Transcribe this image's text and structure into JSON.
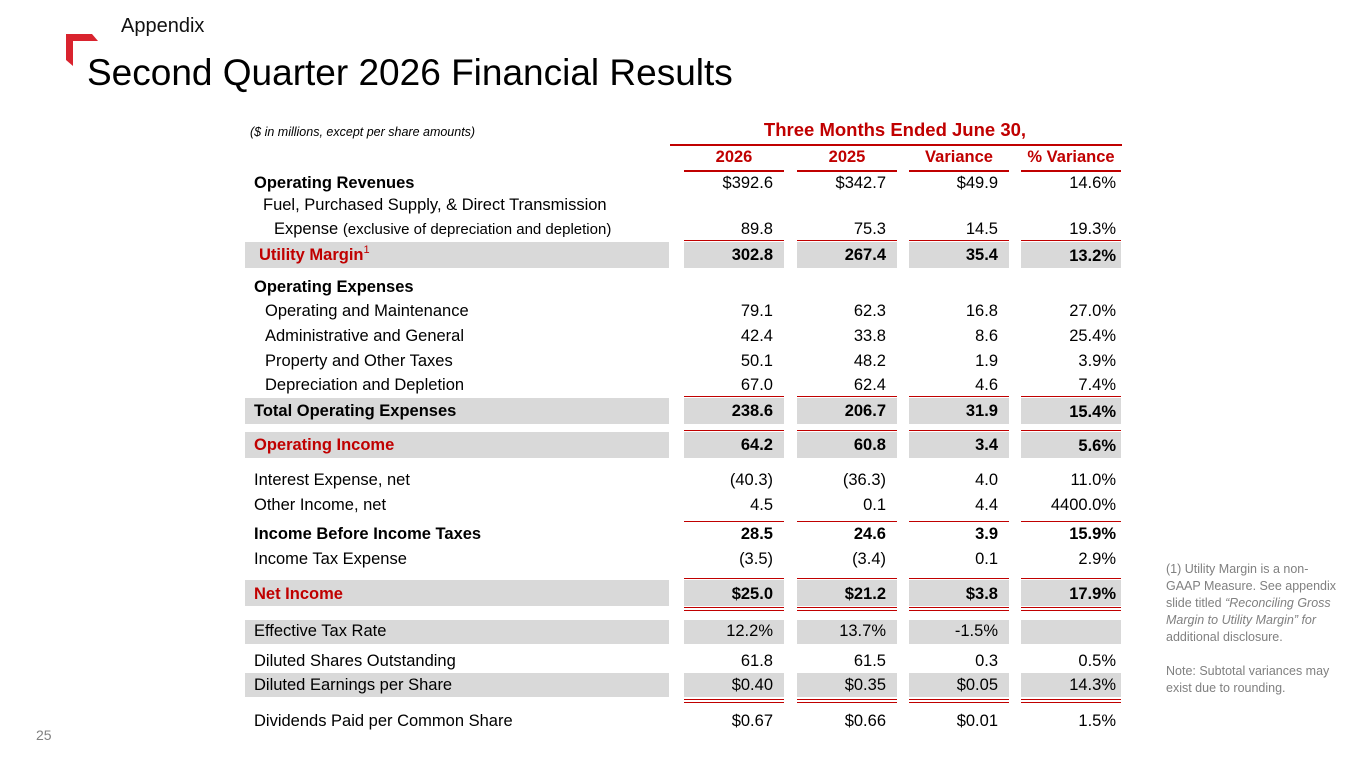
{
  "header": {
    "section": "Appendix",
    "title": "Second Quarter 2026 Financial Results"
  },
  "table": {
    "units_note": "($ in millions, except per share amounts)",
    "period_header": "Three Months Ended June 30,",
    "columns": [
      "2026",
      "2025",
      "Variance",
      "% Variance"
    ],
    "rows": [
      {
        "label": "Operating Revenues",
        "values": [
          "$392.6",
          "$342.7",
          "$49.9",
          "14.6%"
        ],
        "bold": true
      },
      {
        "label": "Fuel, Purchased Supply, & Direct Transmission",
        "values": []
      },
      {
        "label": "Expense",
        "label_suffix": "(exclusive of depreciation and depletion)",
        "values": [
          "89.8",
          "75.3",
          "14.5",
          "19.3%"
        ]
      },
      {
        "label": "Utility Margin",
        "footnote_mark": "1",
        "values": [
          "302.8",
          "267.4",
          "35.4",
          "13.2%"
        ],
        "bold": true,
        "red": true
      },
      {
        "label": "Operating Expenses",
        "values": [],
        "bold": true
      },
      {
        "label": "Operating and Maintenance",
        "values": [
          "79.1",
          "62.3",
          "16.8",
          "27.0%"
        ]
      },
      {
        "label": "Administrative and General",
        "values": [
          "42.4",
          "33.8",
          "8.6",
          "25.4%"
        ]
      },
      {
        "label": "Property and Other Taxes",
        "values": [
          "50.1",
          "48.2",
          "1.9",
          "3.9%"
        ]
      },
      {
        "label": "Depreciation and Depletion",
        "values": [
          "67.0",
          "62.4",
          "4.6",
          "7.4%"
        ]
      },
      {
        "label": "Total Operating Expenses",
        "values": [
          "238.6",
          "206.7",
          "31.9",
          "15.4%"
        ],
        "bold": true
      },
      {
        "label": "Operating Income",
        "values": [
          "64.2",
          "60.8",
          "3.4",
          "5.6%"
        ],
        "bold": true,
        "red": true
      },
      {
        "label": "Interest Expense, net",
        "values": [
          "(40.3)",
          "(36.3)",
          "4.0",
          "11.0%"
        ]
      },
      {
        "label": "Other Income, net",
        "values": [
          "4.5",
          "0.1",
          "4.4",
          "4400.0%"
        ]
      },
      {
        "label": "Income Before Income Taxes",
        "values": [
          "28.5",
          "24.6",
          "3.9",
          "15.9%"
        ],
        "bold": true
      },
      {
        "label": "Income Tax Expense",
        "values": [
          "(3.5)",
          "(3.4)",
          "0.1",
          "2.9%"
        ]
      },
      {
        "label": "Net Income",
        "values": [
          "$25.0",
          "$21.2",
          "$3.8",
          "17.9%"
        ],
        "bold": true,
        "red": true
      },
      {
        "label": "Effective Tax Rate",
        "values": [
          "12.2%",
          "13.7%",
          "-1.5%",
          ""
        ]
      },
      {
        "label": "Diluted Shares Outstanding",
        "values": [
          "61.8",
          "61.5",
          "0.3",
          "0.5%"
        ]
      },
      {
        "label": "Diluted Earnings per Share",
        "values": [
          "$0.40",
          "$0.35",
          "$0.05",
          "14.3%"
        ]
      },
      {
        "label": "Dividends Paid per Common Share",
        "values": [
          "$0.67",
          "$0.66",
          "$0.01",
          "1.5%"
        ]
      }
    ]
  },
  "footnotes": {
    "utility_margin_note_start": "(1) Utility Margin is a non-GAAP Measure. See appendix slide titled",
    "utility_margin_note_italic": "“Reconciling Gross Margin to Utility Margin” for",
    "utility_margin_note_end": "additional disclosure.",
    "rounding_note": "Note: Subtotal variances may exist due to rounding."
  },
  "page_number": "25",
  "colors": {
    "accent_red": "#c00000",
    "shade_gray": "#d9d9d9",
    "footnote_gray": "#808080"
  }
}
